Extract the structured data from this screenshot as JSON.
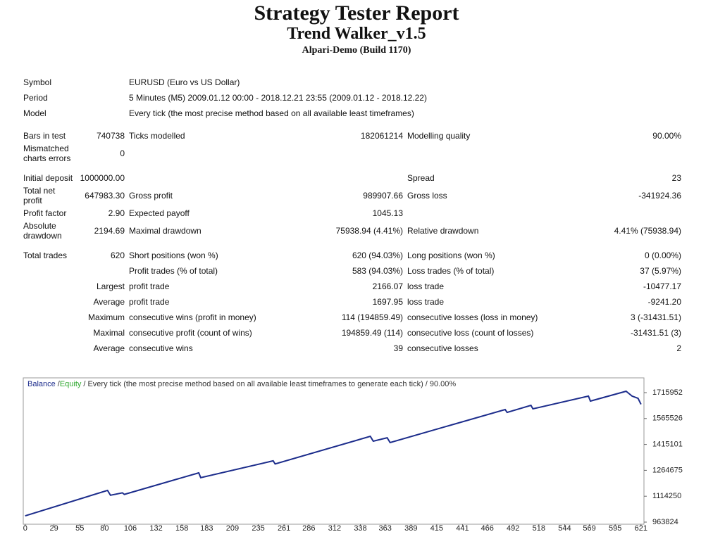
{
  "header": {
    "title": "Strategy Tester Report",
    "subtitle": "Trend Walker_v1.5",
    "server": "Alpari-Demo (Build 1170)"
  },
  "table": {
    "sections": [
      {
        "rows": [
          {
            "label": "Symbol",
            "text": "EURUSD (Euro vs US Dollar)"
          },
          {
            "label": "Period",
            "text": "5 Minutes (M5) 2009.01.12 00:00 - 2018.12.21 23:55 (2009.01.12 - 2018.12.22)"
          },
          {
            "label": "Model",
            "text": "Every tick (the most precise method based on all available least timeframes)"
          }
        ]
      },
      {
        "rows": [
          {
            "label": "Bars in test",
            "value": "740738",
            "label2": "Ticks modelled",
            "value2": "182061214",
            "label3": "Modelling quality",
            "value3": "90.00%"
          },
          {
            "label": "Mismatched charts errors",
            "value": "0"
          }
        ]
      },
      {
        "rows": [
          {
            "label": "Initial deposit",
            "value": "1000000.00",
            "label3": "Spread",
            "value3": "23"
          },
          {
            "label": "Total net profit",
            "value": "647983.30",
            "label2": "Gross profit",
            "value2": "989907.66",
            "label3": "Gross loss",
            "value3": "-341924.36"
          },
          {
            "label": "Profit factor",
            "value": "2.90",
            "label2": "Expected payoff",
            "value2": "1045.13"
          },
          {
            "label": "Absolute drawdown",
            "value": "2194.69",
            "label2": "Maximal drawdown",
            "value2": "75938.94 (4.41%)",
            "label3": "Relative drawdown",
            "value3": "4.41% (75938.94)"
          }
        ]
      },
      {
        "rows": [
          {
            "label": "Total trades",
            "value": "620",
            "label2": "Short positions (won %)",
            "value2": "620 (94.03%)",
            "label3": "Long positions (won %)",
            "value3": "0 (0.00%)"
          },
          {
            "label2": "Profit trades (% of total)",
            "value2": "583 (94.03%)",
            "label3": "Loss trades (% of total)",
            "value3": "37 (5.97%)"
          },
          {
            "value": "Largest",
            "label2": "profit trade",
            "value2": "2166.07",
            "label3": "loss trade",
            "value3": "-10477.17"
          },
          {
            "value": "Average",
            "label2": "profit trade",
            "value2": "1697.95",
            "label3": "loss trade",
            "value3": "-9241.20"
          },
          {
            "value": "Maximum",
            "label2": "consecutive wins (profit in money)",
            "value2": "114 (194859.49)",
            "label3": "consecutive losses (loss in money)",
            "value3": "3 (-31431.51)"
          },
          {
            "value": "Maximal",
            "label2": "consecutive profit (count of wins)",
            "value2": "194859.49 (114)",
            "label3": "consecutive loss (count of losses)",
            "value3": "-31431.51 (3)"
          },
          {
            "value": "Average",
            "label2": "consecutive wins",
            "value2": "39",
            "label3": "consecutive losses",
            "value3": "2"
          }
        ]
      }
    ]
  },
  "chart_data": {
    "type": "line",
    "separator": "/",
    "model_note": "Every tick (the most precise method based on all available least timeframes to generate each tick)",
    "quality": "90.00%",
    "x": [
      0,
      83,
      86,
      98,
      100,
      175,
      177,
      250,
      252,
      348,
      351,
      365,
      368,
      484,
      486,
      510,
      512,
      568,
      570,
      606,
      612,
      618,
      621
    ],
    "series": [
      {
        "name": "Equity",
        "color": "#2ea82e",
        "values": [
          1000000,
          1148000,
          1120000,
          1134000,
          1125000,
          1250000,
          1222000,
          1320000,
          1302000,
          1462000,
          1434000,
          1454000,
          1426000,
          1618000,
          1601000,
          1642000,
          1622000,
          1696000,
          1667000,
          1724000,
          1696000,
          1683000,
          1648000
        ]
      },
      {
        "name": "Balance",
        "color": "#1c2c8c",
        "values": [
          1000000,
          1148000,
          1120000,
          1134000,
          1125000,
          1250000,
          1222000,
          1320000,
          1302000,
          1462000,
          1434000,
          1454000,
          1426000,
          1618000,
          1601000,
          1642000,
          1622000,
          1696000,
          1667000,
          1724000,
          1696000,
          1683000,
          1648000
        ]
      }
    ],
    "xlim": [
      -2,
      624
    ],
    "ylim": [
      951560,
      1801800
    ],
    "xticks": [
      0,
      29,
      55,
      80,
      106,
      132,
      158,
      183,
      209,
      235,
      261,
      286,
      312,
      338,
      363,
      389,
      415,
      441,
      466,
      492,
      518,
      544,
      569,
      595,
      621
    ],
    "yticks": [
      963824,
      1114250,
      1264675,
      1415101,
      1565526,
      1715952
    ]
  }
}
